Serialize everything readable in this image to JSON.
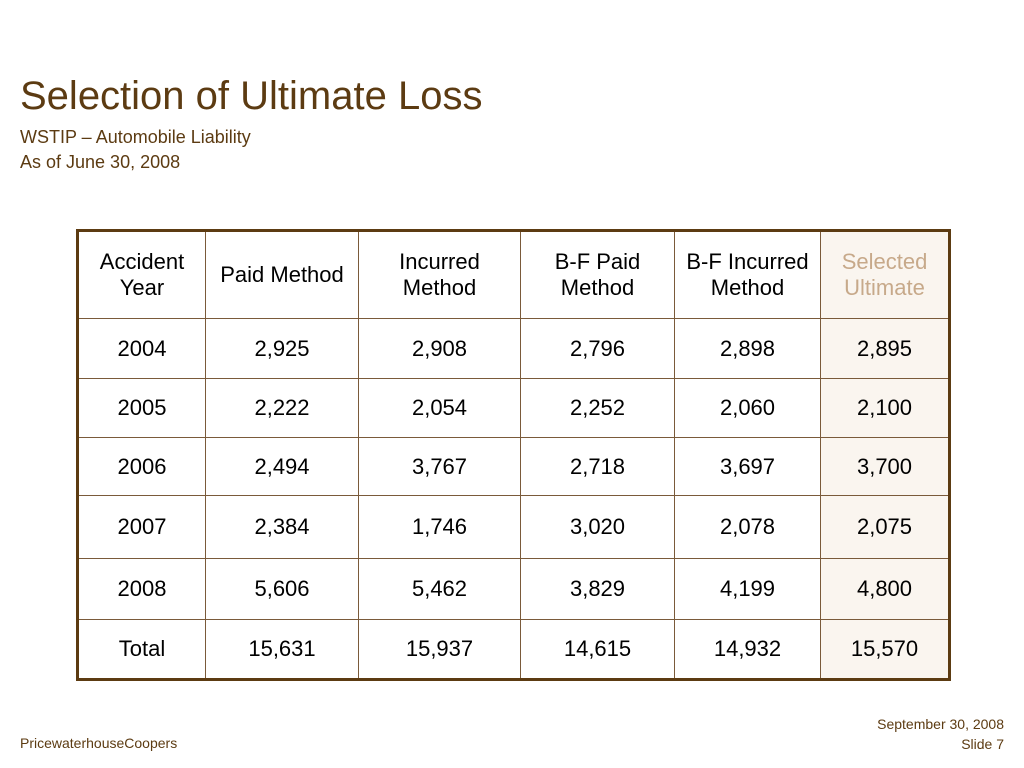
{
  "slide": {
    "title": "Selection of Ultimate Loss",
    "subtitle_line1": "WSTIP – Automobile Liability",
    "subtitle_line2": "As of June 30, 2008"
  },
  "table": {
    "headers": [
      "Accident Year",
      "Paid Method",
      "Incurred Method",
      "B-F Paid Method",
      "B-F Incurred Method",
      "Selected Ultimate"
    ],
    "rows": [
      [
        "2004",
        "2,925",
        "2,908",
        "2,796",
        "2,898",
        "2,895"
      ],
      [
        "2005",
        "2,222",
        "2,054",
        "2,252",
        "2,060",
        "2,100"
      ],
      [
        "2006",
        "2,494",
        "3,767",
        "2,718",
        "3,697",
        "3,700"
      ],
      [
        "2007",
        "2,384",
        "1,746",
        "3,020",
        "2,078",
        "2,075"
      ],
      [
        "2008",
        "5,606",
        "5,462",
        "3,829",
        "4,199",
        "4,800"
      ],
      [
        "Total",
        "15,631",
        "15,937",
        "14,615",
        "14,932",
        "15,570"
      ]
    ]
  },
  "footer": {
    "company": "PricewaterhouseCoopers",
    "date": "September 30, 2008",
    "slide_number": "Slide 7"
  },
  "colors": {
    "title": "#5c3b12",
    "table_border": "#5c3b12",
    "selected_header_text": "#c7a98a",
    "selected_column_fill": "#faf5ef"
  }
}
